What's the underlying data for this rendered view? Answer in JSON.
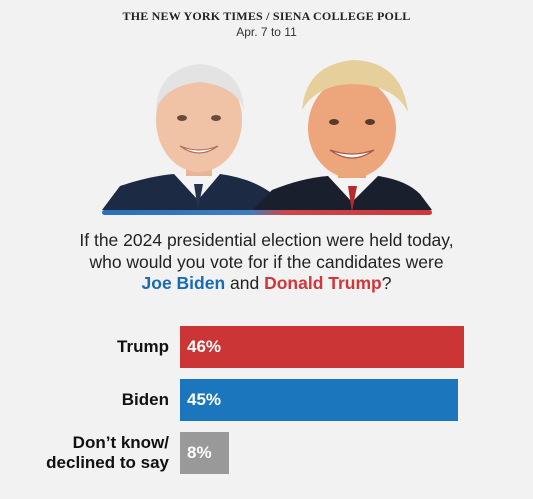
{
  "header": {
    "source": "THE NEW YORK TIMES / SIENA COLLEGE POLL",
    "dates": "Apr. 7 to 11"
  },
  "question": {
    "line1": "If the 2024 presidential election were held today,",
    "line2": "who would you vote for if the candidates were",
    "candidate_a": "Joe Biden",
    "connector": "and",
    "candidate_b": "Donald Trump",
    "end": "?"
  },
  "colors": {
    "trump": "#cb3535",
    "biden": "#1b76bd",
    "undecided": "#999999",
    "background": "#f2f2f2"
  },
  "chart_data": {
    "type": "bar",
    "orientation": "horizontal",
    "categories": [
      "Trump",
      "Biden",
      "Don’t know/ declined to say"
    ],
    "values": [
      46,
      45,
      8
    ],
    "value_labels": [
      "46%",
      "45%",
      "8%"
    ],
    "unit": "%",
    "xlim": [
      0,
      50
    ],
    "grid": false,
    "legend": "none"
  }
}
